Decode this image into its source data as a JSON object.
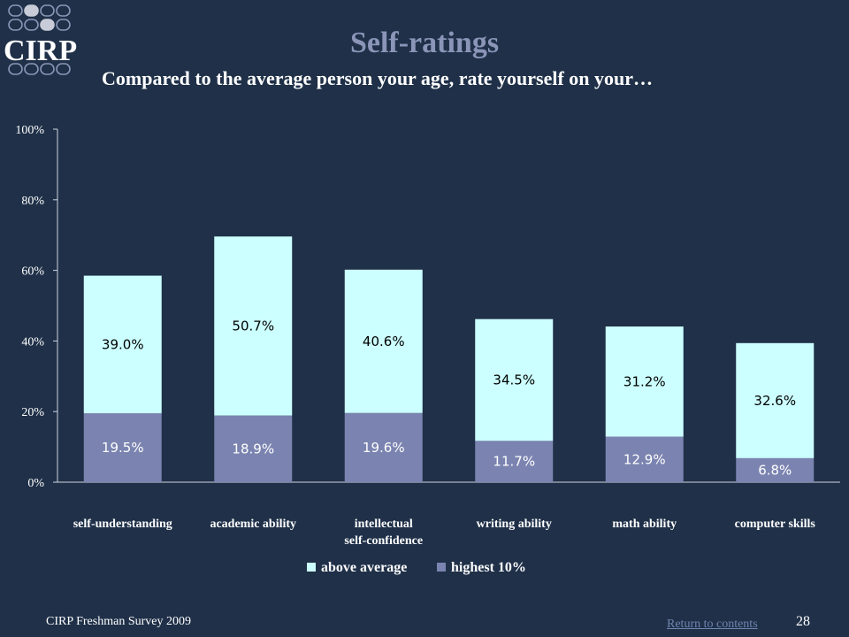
{
  "logo_text": "CIRP",
  "title": "Self-ratings",
  "subtitle": "Compared to the average person your age, rate yourself on your…",
  "footer": {
    "survey": "CIRP Freshman Survey 2009",
    "return_link": "Return to contents",
    "page_number": "28"
  },
  "chart_data": {
    "type": "bar",
    "stacked": true,
    "categories": [
      [
        "self-understanding"
      ],
      [
        "academic ability"
      ],
      [
        "intellectual",
        "self-confidence"
      ],
      [
        "writing ability"
      ],
      [
        "math ability"
      ],
      [
        "computer skills"
      ]
    ],
    "series": [
      {
        "name": "highest 10%",
        "values": [
          19.5,
          18.9,
          19.6,
          11.7,
          12.9,
          6.8
        ],
        "labels": [
          "19.5%",
          "18.9%",
          "19.6%",
          "11.7%",
          "12.9%",
          "6.8%"
        ],
        "color": "#7b84b0",
        "label_color": "#ffffff"
      },
      {
        "name": "above average",
        "values": [
          39.0,
          50.7,
          40.6,
          34.5,
          31.2,
          32.6
        ],
        "labels": [
          "39.0%",
          "50.7%",
          "40.6%",
          "34.5%",
          "31.2%",
          "32.6%"
        ],
        "color": "#ccffff",
        "label_color": "#000000"
      }
    ],
    "legend_order": [
      "above average",
      "highest 10%"
    ],
    "ylim": [
      0,
      100
    ],
    "yticks": [
      "0%",
      "20%",
      "40%",
      "60%",
      "80%",
      "100%"
    ],
    "legend_position": "bottom",
    "grid": false
  }
}
